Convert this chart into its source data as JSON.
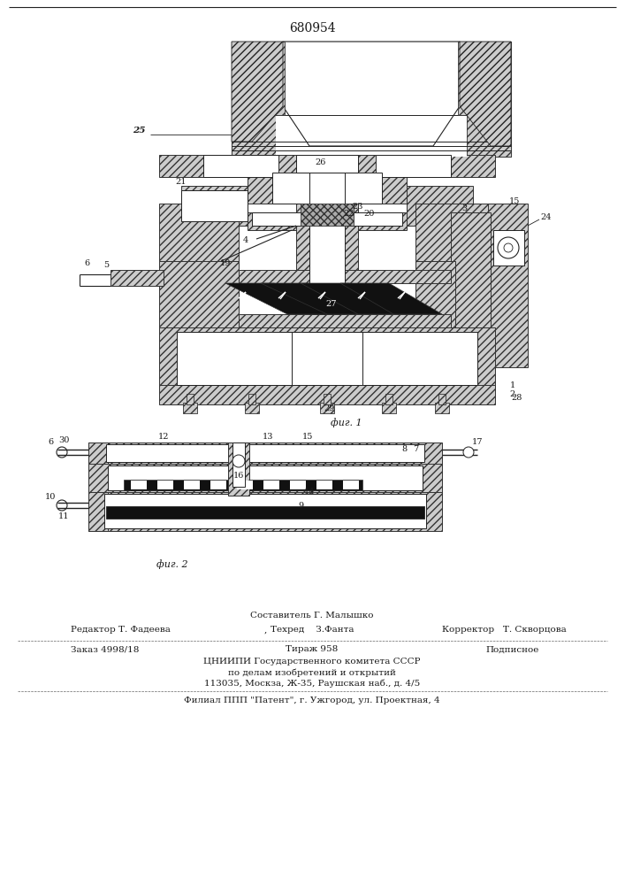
{
  "patent_number": "680954",
  "bg_color": "#ffffff",
  "fig_width": 7.07,
  "fig_height": 10.0,
  "dpi": 100,
  "bottom_section": {
    "composer_line": "Составитель Г. Малышко",
    "editor_label": "Редактор Т. Фадеева",
    "comma": ",",
    "techred_label": "Техред    З.Фанта",
    "corrector_label": "Корректор   Т. Скворцова",
    "order_label": "Заказ 4998/18",
    "tirazh_label": "Тираж 958",
    "podpisnoe_label": "Подписное",
    "org_line1": "ЦНИИПИ Государственного комитета СССР",
    "org_line2": "по делам изобретений и открытий",
    "org_line3": "113035, Москза, Ж-35, Раушская наб., д. 4/5",
    "branch_line": "Филиал ППП \"Патент\", г. Ужгород, ул. Проектная, 4",
    "fig1_caption": "фиг. 1",
    "fig2_caption": "фиг. 2"
  },
  "text_color": "#1a1a1a",
  "line_color": "#222222",
  "hatch_fc": "#cccccc",
  "hatch_ec": "#333333"
}
